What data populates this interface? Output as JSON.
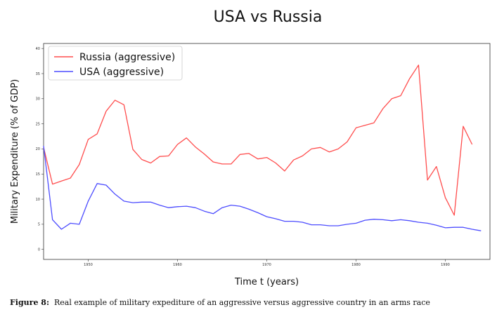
{
  "caption": {
    "label": "Figure 8:",
    "text": "Real example of military expediture of an aggressive versus aggressive country in an arms race"
  },
  "chart_data": {
    "type": "line",
    "title": "USA vs Russia",
    "xlabel": "Time t (years)",
    "ylabel": "Military Expenditure (% of GDP)",
    "xlim": [
      1945,
      1995
    ],
    "ylim": [
      -2,
      41
    ],
    "xticks": [
      1950,
      1960,
      1970,
      1980,
      1990
    ],
    "yticks": [
      0,
      5,
      10,
      15,
      20,
      25,
      30,
      35,
      40
    ],
    "grid": false,
    "legend": "top-left",
    "series": [
      {
        "name": "Russia (aggressive)",
        "color": "#ff4d4d",
        "x": [
          1945,
          1946,
          1947,
          1948,
          1949,
          1950,
          1951,
          1952,
          1953,
          1954,
          1955,
          1956,
          1957,
          1958,
          1959,
          1960,
          1961,
          1962,
          1963,
          1964,
          1965,
          1966,
          1967,
          1968,
          1969,
          1970,
          1971,
          1972,
          1973,
          1974,
          1975,
          1976,
          1977,
          1978,
          1979,
          1980,
          1981,
          1982,
          1983,
          1984,
          1985,
          1986,
          1987,
          1988,
          1989,
          1990,
          1991,
          1992,
          1993
        ],
        "values": [
          20.3,
          13.0,
          13.6,
          14.2,
          16.9,
          21.9,
          23.0,
          27.5,
          29.7,
          28.8,
          19.9,
          17.9,
          17.2,
          18.5,
          18.6,
          20.9,
          22.2,
          20.4,
          19.0,
          17.4,
          17.0,
          17.0,
          18.9,
          19.1,
          18.0,
          18.3,
          17.2,
          15.6,
          17.8,
          18.6,
          20.0,
          20.3,
          19.4,
          20.0,
          21.4,
          24.2,
          24.7,
          25.2,
          28.0,
          30.0,
          30.6,
          34.0,
          36.7,
          13.8,
          16.5,
          10.3,
          6.8,
          24.5,
          20.9
        ]
      },
      {
        "name": "USA (aggressive)",
        "color": "#4d4dff",
        "x": [
          1945,
          1946,
          1947,
          1948,
          1949,
          1950,
          1951,
          1952,
          1953,
          1954,
          1955,
          1956,
          1957,
          1958,
          1959,
          1960,
          1961,
          1962,
          1963,
          1964,
          1965,
          1966,
          1967,
          1968,
          1969,
          1970,
          1971,
          1972,
          1973,
          1974,
          1975,
          1976,
          1977,
          1978,
          1979,
          1980,
          1981,
          1982,
          1983,
          1984,
          1985,
          1986,
          1987,
          1988,
          1989,
          1990,
          1991,
          1992,
          1993,
          1994
        ],
        "values": [
          20.6,
          5.9,
          4.0,
          5.2,
          5.0,
          9.6,
          13.1,
          12.8,
          11.0,
          9.6,
          9.3,
          9.4,
          9.4,
          8.8,
          8.3,
          8.5,
          8.6,
          8.3,
          7.6,
          7.1,
          8.3,
          8.8,
          8.6,
          8.0,
          7.3,
          6.5,
          6.1,
          5.6,
          5.6,
          5.4,
          4.9,
          4.9,
          4.7,
          4.7,
          5.0,
          5.2,
          5.8,
          6.0,
          5.9,
          5.7,
          5.9,
          5.7,
          5.4,
          5.2,
          4.8,
          4.3,
          4.4,
          4.4,
          4.0,
          3.7
        ]
      }
    ]
  }
}
